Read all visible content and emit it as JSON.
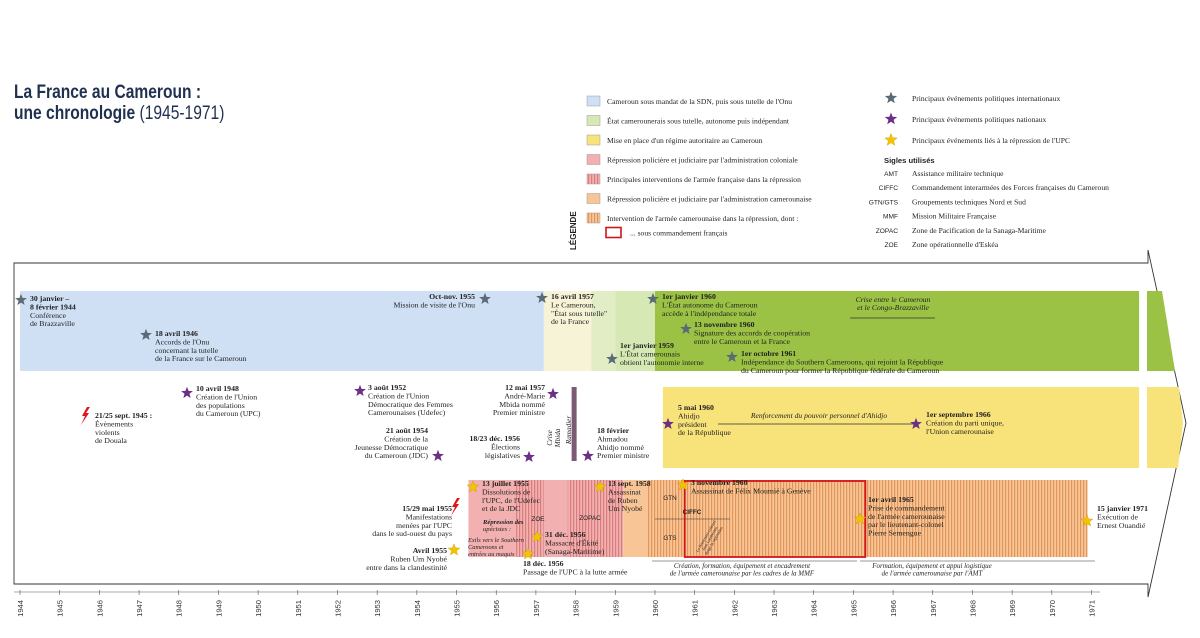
{
  "title": {
    "line1": "La France au Cameroun :",
    "line2a": "une chronologie",
    "line2b": "(1945-1971)"
  },
  "legend": {
    "heading": "LÉGENDE",
    "periods": [
      {
        "label": "Cameroun sous mandat de la SDN, puis sous tutelle de l'Onu",
        "fill": "#cfe0f5",
        "pattern": "none"
      },
      {
        "label": "État camerounerais sous tutelle, autonome puis indépendant",
        "fill": "#d6e9b4",
        "pattern": "none"
      },
      {
        "label": "Mise en place d'un régime autoritaire au Cameroun",
        "fill": "#f8e27a",
        "pattern": "none"
      },
      {
        "label": "Répression policière et judiciaire par l'administration coloniale",
        "fill": "#f2b0b0",
        "pattern": "none"
      },
      {
        "label": "Principales interventions de l'armée française dans la répression",
        "fill": "#f2b0b0",
        "pattern": "stripes"
      },
      {
        "label": "Répression policière et judiciaire par l'administration camerounaise",
        "fill": "#f8c596",
        "pattern": "none"
      },
      {
        "label": "Intervention de l'armée camerounaise dans la répression, dont :",
        "fill": "#f8c596",
        "pattern": "stripes"
      },
      {
        "label": "... sous commandement français",
        "fill": "#ffffff",
        "pattern": "redbox"
      }
    ],
    "stars": [
      {
        "label": "Principaux événements politiques internationaux",
        "color": "#5a6b75"
      },
      {
        "label": "Principaux événements politiques nationaux",
        "color": "#6b2f86"
      },
      {
        "label": "Principaux événements liés à la répression de l'UPC",
        "color": "#f5c400"
      }
    ],
    "sigles_heading": "Sigles utilisés",
    "sigles": [
      {
        "abbr": "AMT",
        "text": "Assistance militaire technique"
      },
      {
        "abbr": "CIFFC",
        "text": "Commandement interarmées des Forces françaises du Cameroun"
      },
      {
        "abbr": "GTN/GTS",
        "text": "Groupements techniques Nord et Sud"
      },
      {
        "abbr": "MMF",
        "text": "Mission Militaire Française"
      },
      {
        "abbr": "ZOPAC",
        "text": "Zone de Pacification de la Sanaga-Maritime"
      },
      {
        "abbr": "ZOE",
        "text": "Zone opérationnelle d'Eskéa"
      }
    ]
  },
  "axis": {
    "start": 1944,
    "end": 1971,
    "ticks": [
      "1944",
      "1945",
      "1946",
      "1947",
      "1948",
      "1949",
      "1950",
      "1951",
      "1952",
      "1953",
      "1954",
      "1955",
      "1956",
      "1957",
      "1958",
      "1959",
      "1960",
      "1961",
      "1962",
      "1963",
      "1964",
      "1965",
      "1966",
      "1967",
      "1968",
      "1969",
      "1970",
      "1971"
    ]
  },
  "period_bars": [
    {
      "row": 1,
      "start": 1944.0,
      "end": 1957.2,
      "fill": "#cfe0f5",
      "pattern": "none"
    },
    {
      "row": 1,
      "start": 1957.2,
      "end": 1958.4,
      "fill": "#f7f3d6",
      "pattern": "none"
    },
    {
      "row": 1,
      "start": 1958.4,
      "end": 1959.0,
      "fill": "#e2edc6",
      "pattern": "none"
    },
    {
      "row": 1,
      "start": 1959.0,
      "end": 1960.0,
      "fill": "#d6e9b4",
      "pattern": "none"
    },
    {
      "row": 1,
      "start": 1960.0,
      "end": 1972.2,
      "fill": "#9cc245",
      "pattern": "none"
    },
    {
      "row": 2,
      "start": 1960.2,
      "end": 1972.2,
      "fill": "#f8e27a",
      "pattern": "none"
    },
    {
      "row": 3,
      "start": 1955.3,
      "end": 1956.5,
      "fill": "#f2b0b0",
      "pattern": "none"
    },
    {
      "row": 3,
      "start": 1956.5,
      "end": 1957.2,
      "fill": "#f2b0b0",
      "pattern": "stripes"
    },
    {
      "row": 3,
      "start": 1957.2,
      "end": 1957.8,
      "fill": "#f2b0b0",
      "pattern": "none"
    },
    {
      "row": 3,
      "start": 1957.8,
      "end": 1959.2,
      "fill": "#f2b0b0",
      "pattern": "stripes"
    },
    {
      "row": 3,
      "start": 1959.2,
      "end": 1959.8,
      "fill": "#f8c596",
      "pattern": "none"
    },
    {
      "row": 3,
      "start": 1959.8,
      "end": 1970.9,
      "fill": "#f8c596",
      "pattern": "stripes"
    }
  ],
  "events": [
    {
      "id": "e1",
      "year": 1944.05,
      "row": 1,
      "kind": "intl",
      "date": "30 janvier –\n8 février 1944",
      "text": "Conférence\nde Brazzaville"
    },
    {
      "id": "e2",
      "year": 1947.2,
      "row": 1,
      "kind": "intl",
      "date": "18 avril 1946",
      "text": "Accords de l'Onu\nconcernant la tutelle\nde la France sur le Cameroun"
    },
    {
      "id": "e3",
      "year": 1955.7,
      "row": 1,
      "kind": "intl",
      "date": "Oct-nov. 1955",
      "text": "Mission de visite de l'Onu"
    },
    {
      "id": "e4",
      "year": 1957.1,
      "row": 1,
      "kind": "intl",
      "date": "16 avril 1957",
      "text": "Le Cameroun,\n\"État sous tutelle\"\nde la France"
    },
    {
      "id": "e5",
      "year": 1958.9,
      "row": 1,
      "kind": "intl",
      "date": "1er janvier 1959",
      "text": "L'État camerounais\nobtient l'autonomie interne"
    },
    {
      "id": "e6",
      "year": 1959.9,
      "row": 1,
      "kind": "intl",
      "date": "1er janvier 1960",
      "text": "L'État autonome du Cameroun\naccède à l'indépendance totale"
    },
    {
      "id": "e7",
      "year": 1960.7,
      "row": 1,
      "kind": "intl",
      "date": "13 novembre 1960",
      "text": "Signature des accords de coopération\nentre le Cameroun et la France"
    },
    {
      "id": "e8",
      "year": 1961.8,
      "row": 1,
      "kind": "intl",
      "date": "1er octobre 1961",
      "text": "Indépendance du Southern Cameroons, qui rejoint la République\ndu Cameroun pour former la République fédérale du Cameroun"
    },
    {
      "id": "e9",
      "year": 1948.2,
      "row": 2,
      "kind": "nat",
      "date": "10 avril 1948",
      "text": "Création de l'Union\ndes populations\ndu Cameroun (UPC)"
    },
    {
      "id": "e10",
      "year": 1952.6,
      "row": 2,
      "kind": "nat",
      "date": "3 août 1952",
      "text": "Création de l'Union\nDémocratique des Femmes\nCamerounaises (Udefec)"
    },
    {
      "id": "e11",
      "year": 1954.6,
      "row": 2,
      "kind": "nat",
      "date": "21 août 1954",
      "text": "Création de la\nJeunesse Démocratique\ndu Cameroun (JDC)"
    },
    {
      "id": "e12",
      "year": 1957.4,
      "row": 2,
      "kind": "nat",
      "date": "12 mai 1957",
      "text": "André-Marie\nMbida nommé\nPremier ministre"
    },
    {
      "id": "e13",
      "year": 1956.9,
      "row": 2,
      "kind": "nat",
      "date": "18/23 déc. 1956",
      "text": "Élections\nlégislatives"
    },
    {
      "id": "e14",
      "year": 1958.3,
      "row": 2,
      "kind": "nat",
      "date": "18 février",
      "text": "Ahmadou\nAhidjo nommé\nPremier ministre"
    },
    {
      "id": "e15",
      "year": 1960.3,
      "row": 2,
      "kind": "nat",
      "date": "5 mai 1960",
      "text": "Ahidjo\nprésident\nde la République"
    },
    {
      "id": "e16",
      "year": 1966.6,
      "row": 2,
      "kind": "nat",
      "date": "1er septembre 1966",
      "text": "Création du parti unique,\nl'Union camerounaise"
    },
    {
      "id": "e17",
      "year": 1945.6,
      "row": 2,
      "kind": "riot",
      "date": "21/25 sept. 1945 :",
      "text": "Évènements\nviolents\nde Douala"
    },
    {
      "id": "e18",
      "year": 1955.4,
      "row": 3,
      "kind": "repr",
      "date": "13 juillet 1955",
      "text": "Dissolutions de\nl'UPC, de l'Udefec\net de la JDC"
    },
    {
      "id": "e19",
      "year": 1955.3,
      "row": 3,
      "kind": "riot",
      "date": "15/29 mai 1955",
      "text": "Manifestations\nmenées par l'UPC\ndans le sud-ouest du pays"
    },
    {
      "id": "e20",
      "year": 1954.9,
      "row": 3,
      "kind": "repr",
      "date": "Avril 1955",
      "text": "Ruben Um Nyobé\nentre dans la clandestinité"
    },
    {
      "id": "e21",
      "year": 1958.7,
      "row": 3,
      "kind": "repr",
      "date": "13 sept. 1958",
      "text": "Assassinat\nde Ruben\nUm Nyobé"
    },
    {
      "id": "e22",
      "year": 1957.0,
      "row": 3,
      "kind": "repr",
      "date": "31 déc. 1956",
      "text": "Massacre d'Ékité\n(Sanaga-Maritime)"
    },
    {
      "id": "e23",
      "year": 1956.9,
      "row": 3,
      "kind": "repr",
      "date": "18 déc. 1956",
      "text": "Passage de l'UPC à la lutte armée"
    },
    {
      "id": "e24",
      "year": 1960.85,
      "row": 3,
      "kind": "repr",
      "date": "3 novembre 1960",
      "text": "Assassinat de Félix Moumié à Genève"
    },
    {
      "id": "e25",
      "year": 1965.3,
      "row": 3,
      "kind": "repr",
      "date": "1er avril 1965",
      "text": "Prise de commandement\nde l'armée camerounaise\npar le lieutenant-colonel\nPierre Semengue"
    },
    {
      "id": "e26",
      "year": 1970.9,
      "row": 3,
      "kind": "repr",
      "date": "15 janvier 1971",
      "text": "Exécution de\nErnest Ouandié"
    }
  ],
  "annotations": {
    "crise_congo": "Crise entre le Cameroun\net le Congo-Brazzaville",
    "crise_mbida": "Crise\nMbida",
    "crise_ramadier": "Ramadier",
    "renforcement": "Renforcement du pouvoir personnel d'Ahidjo",
    "repression_upecistes": "Répression des\nupécistes :",
    "exils": "Exils vers le Southern\nCameroons et\nentrées au maquis",
    "zoe": "ZOE",
    "zopac": "ZOPAC",
    "gtn": "GTN",
    "gts": "GTS",
    "ciffc": "CIFFC",
    "lieutenant": "Le lieutenant-colonel\nJean Lamberton\ndirige la répression",
    "mmf": "Création, formation, équipement et encadrement\nde l'armée camerounaise par les cadres de la MMF",
    "amt": "Formation, équipement et appui logistique\nde l'armée camerounaise par l'AMT"
  },
  "colors": {
    "intl": "#5a6b75",
    "nat": "#6b2f86",
    "repr": "#f5c400",
    "riot": "#e0151b",
    "text": "#1f1f1f",
    "red": "#d4141b"
  }
}
